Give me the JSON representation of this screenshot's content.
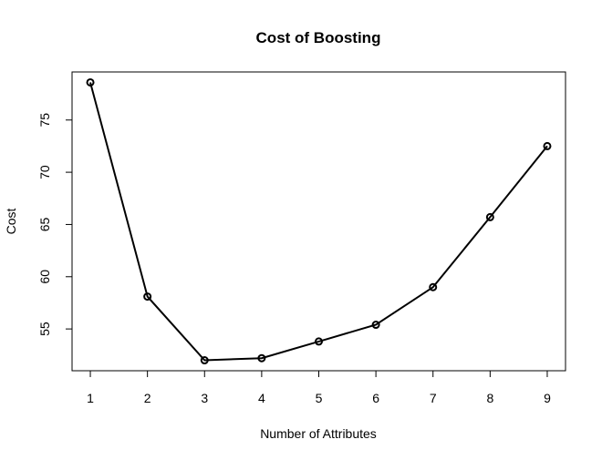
{
  "chart_data": {
    "type": "line",
    "title": "Cost of Boosting",
    "xlabel": "Number of Attributes",
    "ylabel": "Cost",
    "x": [
      1,
      2,
      3,
      4,
      5,
      6,
      7,
      8,
      9
    ],
    "values": [
      78.6,
      58.1,
      52.0,
      52.2,
      53.8,
      55.4,
      59.0,
      65.7,
      72.5
    ],
    "xticks": [
      "1",
      "2",
      "3",
      "4",
      "5",
      "6",
      "7",
      "8",
      "9"
    ],
    "yticks": [
      "55",
      "60",
      "65",
      "70",
      "75"
    ],
    "xlim": [
      0.68,
      9.32
    ],
    "ylim": [
      51.0,
      79.6
    ],
    "grid": false,
    "legend": "none",
    "line_color": "#000000",
    "marker": "open-circle"
  }
}
